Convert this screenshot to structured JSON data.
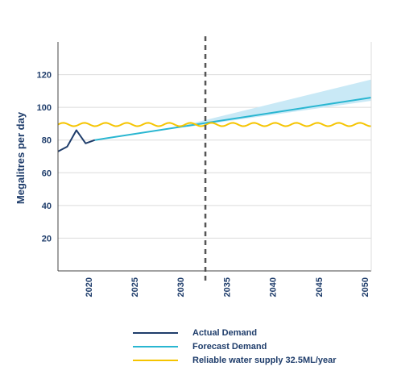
{
  "chart_data": {
    "type": "line",
    "title": "",
    "ylabel": "Megalitres per day",
    "xlabel": "",
    "xlim": [
      2016,
      2050
    ],
    "ylim": [
      0,
      140
    ],
    "x_ticks": [
      2020,
      2025,
      2030,
      2035,
      2040,
      2045,
      2050
    ],
    "x_tick_labels": [
      "2020",
      "2025",
      "2030",
      "2035",
      "2040",
      "2045",
      "2050"
    ],
    "y_ticks": [
      20,
      40,
      60,
      80,
      100,
      120
    ],
    "y_tick_labels": [
      "20",
      "40",
      "60",
      "80",
      "100",
      "120"
    ],
    "grid": "horizontal",
    "divider_year": 2032,
    "series": [
      {
        "name": "Actual Demand",
        "color": "#1f3d6b",
        "x": [
          2016,
          2017,
          2018,
          2019,
          2020
        ],
        "y": [
          73,
          76,
          86,
          78,
          80
        ]
      },
      {
        "name": "Forecast Demand",
        "color": "#29b6d1",
        "x": [
          2020,
          2050
        ],
        "y": [
          80,
          106
        ]
      },
      {
        "name": "Reliable water supply 32.5ML/year",
        "color": "#f5c400",
        "level": 89.5,
        "wave_amplitude": 1,
        "wave_period_years": 2.3
      }
    ],
    "uncertainty_band": {
      "color": "#c9e9f6",
      "x": [
        2030,
        2050
      ],
      "upper": [
        89.5,
        117
      ],
      "lower": [
        88,
        104
      ]
    },
    "legend": {
      "position": "bottom",
      "items": [
        {
          "label": "Actual Demand",
          "color": "#1f3d6b"
        },
        {
          "label": "Forecast Demand",
          "color": "#29b6d1"
        },
        {
          "label": "Reliable water supply 32.5ML/year",
          "color": "#f5c400"
        }
      ]
    }
  }
}
